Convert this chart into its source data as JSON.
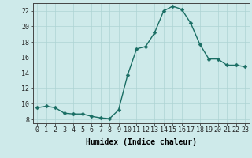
{
  "x": [
    0,
    1,
    2,
    3,
    4,
    5,
    6,
    7,
    8,
    9,
    10,
    11,
    12,
    13,
    14,
    15,
    16,
    17,
    18,
    19,
    20,
    21,
    22,
    23
  ],
  "y": [
    9.5,
    9.7,
    9.5,
    8.8,
    8.7,
    8.7,
    8.4,
    8.2,
    8.1,
    9.2,
    13.7,
    17.1,
    17.4,
    19.2,
    22.0,
    22.6,
    22.2,
    20.4,
    17.7,
    15.8,
    15.8,
    15.0,
    15.0,
    14.8
  ],
  "xlabel": "Humidex (Indice chaleur)",
  "bg_color": "#ceeaea",
  "line_color": "#1a6e64",
  "marker_color": "#1a6e64",
  "grid_color": "#aed4d4",
  "ylim": [
    7.5,
    23.0
  ],
  "xlim": [
    -0.5,
    23.5
  ],
  "yticks": [
    8,
    10,
    12,
    14,
    16,
    18,
    20,
    22
  ],
  "xticks": [
    0,
    1,
    2,
    3,
    4,
    5,
    6,
    7,
    8,
    9,
    10,
    11,
    12,
    13,
    14,
    15,
    16,
    17,
    18,
    19,
    20,
    21,
    22,
    23
  ],
  "xlabel_fontsize": 7,
  "tick_fontsize": 6,
  "linewidth": 1.0,
  "markersize": 2.5
}
